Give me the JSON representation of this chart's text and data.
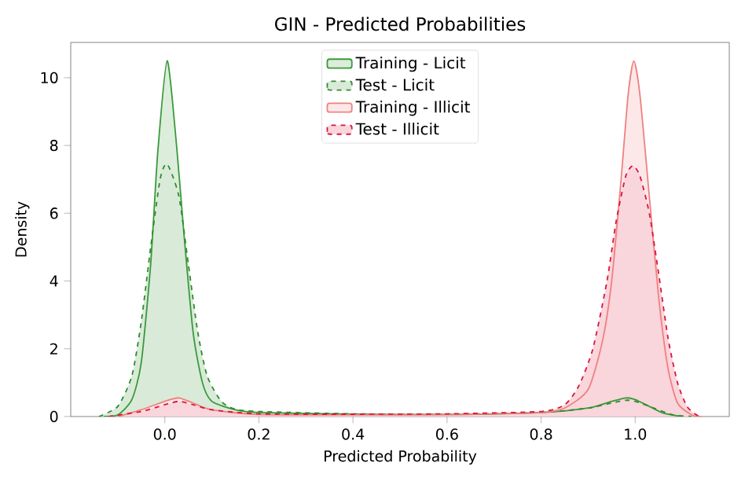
{
  "chart_data": {
    "type": "area",
    "title": "GIN - Predicted Probabilities",
    "xlabel": "Predicted Probability",
    "ylabel": "Density",
    "xlim": [
      -0.2,
      1.2
    ],
    "ylim": [
      0,
      11.04
    ],
    "xticks": [
      {
        "value": 0,
        "label": "0.0"
      },
      {
        "value": 0.2,
        "label": "0.2"
      },
      {
        "value": 0.4,
        "label": "0.4"
      },
      {
        "value": 0.6,
        "label": "0.6"
      },
      {
        "value": 0.8,
        "label": "0.8"
      },
      {
        "value": 1,
        "label": "1.0"
      }
    ],
    "yticks": [
      0,
      2,
      4,
      6,
      8,
      10
    ],
    "legend": "top",
    "grid": false,
    "series": [
      {
        "name": "Training - Licit",
        "color": "#3a9a3a",
        "line_style": "solid",
        "x": [
          -0.13,
          -0.1,
          -0.07,
          -0.05,
          -0.03,
          -0.015,
          0.005,
          0.025,
          0.04,
          0.06,
          0.08,
          0.1,
          0.15,
          0.2,
          0.4,
          0.6,
          0.8,
          0.9,
          0.95,
          0.98,
          1.0,
          1.03,
          1.06,
          1.1
        ],
        "values": [
          0,
          0.05,
          0.5,
          1.6,
          4.5,
          7.8,
          10.5,
          8,
          5.5,
          2.5,
          1.0,
          0.45,
          0.2,
          0.12,
          0.07,
          0.06,
          0.12,
          0.25,
          0.45,
          0.55,
          0.5,
          0.3,
          0.1,
          0
        ]
      },
      {
        "name": "Test - Licit",
        "color": "#2e8b2e",
        "line_style": "dashed",
        "x": [
          -0.14,
          -0.1,
          -0.07,
          -0.05,
          -0.03,
          -0.01,
          0.005,
          0.03,
          0.05,
          0.07,
          0.09,
          0.12,
          0.15,
          0.2,
          0.4,
          0.6,
          0.8,
          0.9,
          0.95,
          0.98,
          1.0,
          1.04,
          1.08,
          1.12
        ],
        "values": [
          0,
          0.3,
          1.2,
          2.8,
          5,
          7,
          7.45,
          6.5,
          4.5,
          2.5,
          1.2,
          0.45,
          0.22,
          0.15,
          0.08,
          0.07,
          0.12,
          0.25,
          0.4,
          0.48,
          0.45,
          0.25,
          0.05,
          0
        ]
      },
      {
        "name": "Training - Illicit",
        "color": "#f08080",
        "line_style": "solid",
        "x": [
          -0.1,
          -0.05,
          0.0,
          0.03,
          0.06,
          0.1,
          0.2,
          0.4,
          0.6,
          0.8,
          0.85,
          0.9,
          0.93,
          0.95,
          0.97,
          0.985,
          0.997,
          1.01,
          1.03,
          1.05,
          1.07,
          1.09,
          1.12,
          1.14
        ],
        "values": [
          0,
          0.2,
          0.45,
          0.55,
          0.4,
          0.2,
          0.06,
          0.05,
          0.06,
          0.12,
          0.25,
          0.8,
          2.2,
          4.0,
          7,
          9.5,
          10.5,
          9.5,
          6.5,
          3.5,
          1.4,
          0.4,
          0.05,
          0
        ]
      },
      {
        "name": "Test - Illicit",
        "color": "#dc143c",
        "line_style": "dashed",
        "x": [
          -0.12,
          -0.05,
          0.0,
          0.03,
          0.06,
          0.1,
          0.2,
          0.4,
          0.6,
          0.8,
          0.85,
          0.88,
          0.91,
          0.94,
          0.96,
          0.98,
          0.995,
          1.01,
          1.03,
          1.05,
          1.07,
          1.09,
          1.11,
          1.13,
          1.14
        ],
        "values": [
          0,
          0.15,
          0.35,
          0.45,
          0.35,
          0.2,
          0.08,
          0.07,
          0.08,
          0.15,
          0.35,
          0.9,
          2.0,
          4.0,
          5.8,
          7.1,
          7.4,
          7.1,
          6.0,
          4.2,
          2.3,
          1.0,
          0.3,
          0.05,
          0
        ]
      }
    ]
  }
}
